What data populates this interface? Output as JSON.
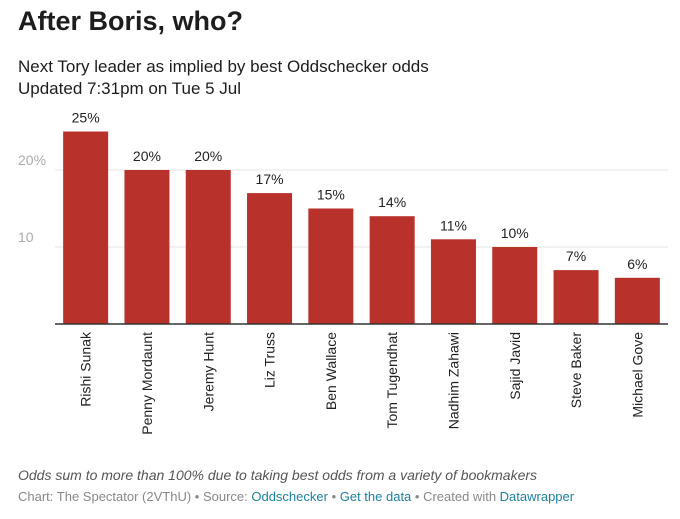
{
  "header": {
    "title": "After Boris, who?",
    "subtitle_line1": "Next Tory leader as implied by best Oddschecker odds",
    "subtitle_line2": "Updated 7:31pm on Tue 5 Jul"
  },
  "footer": {
    "note": "Odds sum to more than 100% due to taking best odds from a variety of bookmakers",
    "chart_prefix": "Chart: The Spectator (2VThU) • Source: ",
    "source_link": "Oddschecker",
    "sep1": " • ",
    "data_link": "Get the data",
    "sep2": " • Created with ",
    "tool_link": "Datawrapper"
  },
  "colors": {
    "bar": "#b8312b",
    "grid": "#e5e5e5",
    "axis": "#333333",
    "link": "#1d81a2"
  },
  "chart_data": {
    "type": "bar",
    "categories": [
      "Rishi Sunak",
      "Penny Mordaunt",
      "Jeremy Hunt",
      "Liz Truss",
      "Ben Wallace",
      "Tom Tugendhat",
      "Nadhim Zahawi",
      "Sajid Javid",
      "Steve Baker",
      "Michael Gove"
    ],
    "values": [
      25,
      20,
      20,
      17,
      15,
      14,
      11,
      10,
      7,
      6
    ],
    "data_labels": [
      "25%",
      "20%",
      "20%",
      "17%",
      "15%",
      "14%",
      "11%",
      "10%",
      "7%",
      "6%"
    ],
    "yticks": [
      10,
      20
    ],
    "ytick_labels": [
      "10",
      "20%"
    ],
    "ylim": [
      0,
      25
    ],
    "grid": true,
    "xlabel": "",
    "ylabel": ""
  }
}
